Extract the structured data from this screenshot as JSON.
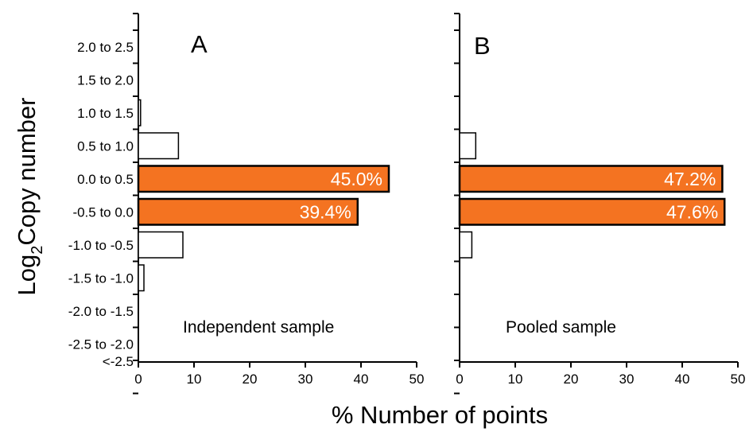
{
  "figure": {
    "ylabel_base": "Log",
    "ylabel_sub": "2",
    "ylabel_rest": "Copy number",
    "xlabel": "% Number of points"
  },
  "chart_data": [
    {
      "type": "bar",
      "orientation": "horizontal",
      "panel_label": "A",
      "caption": "Independent sample",
      "categories": [
        "<-2.5",
        "-2.5 to -2.0",
        "-2.0 to -1.5",
        "-1.5 to -1.0",
        "-1.0 to -0.5",
        "-0.5 to 0.0",
        "0.0 to 0.5",
        "0.5 to 1.0",
        "1.0 to 1.5",
        "1.5 to 2.0",
        "2.0 to 2.5"
      ],
      "category_labels_shown": true,
      "values": [
        0,
        0,
        0,
        1.0,
        8.0,
        39.4,
        45.0,
        7.2,
        0.4,
        0,
        0
      ],
      "data_labels": [
        "",
        "",
        "",
        "",
        "",
        "39.4%",
        "45.0%",
        "",
        "",
        "",
        ""
      ],
      "highlight": [
        false,
        false,
        false,
        false,
        false,
        true,
        true,
        false,
        false,
        false,
        false
      ],
      "xlim": [
        0,
        50
      ],
      "xticks": [
        0,
        10,
        20,
        30,
        40,
        50
      ],
      "highlight_color": "#f47321",
      "bar_color": "#ffffff",
      "data_label_color": "#ffffff"
    },
    {
      "type": "bar",
      "orientation": "horizontal",
      "panel_label": "B",
      "caption": "Pooled sample",
      "categories": [
        "<-2.5",
        "-2.5 to -2.0",
        "-2.0 to -1.5",
        "-1.5 to -1.0",
        "-1.0 to -0.5",
        "-0.5 to 0.0",
        "0.0 to 0.5",
        "0.5 to 1.0",
        "1.0 to 1.5",
        "1.5 to 2.0",
        "2.0 to 2.5"
      ],
      "category_labels_shown": false,
      "values": [
        0,
        0,
        0,
        0,
        2.2,
        47.6,
        47.2,
        2.9,
        0,
        0,
        0
      ],
      "data_labels": [
        "",
        "",
        "",
        "",
        "",
        "47.6%",
        "47.2%",
        "",
        "",
        "",
        ""
      ],
      "highlight": [
        false,
        false,
        false,
        false,
        false,
        true,
        true,
        false,
        false,
        false,
        false
      ],
      "xlim": [
        0,
        50
      ],
      "xticks": [
        0,
        10,
        20,
        30,
        40,
        50
      ],
      "highlight_color": "#f47321",
      "bar_color": "#ffffff",
      "data_label_color": "#ffffff"
    }
  ]
}
